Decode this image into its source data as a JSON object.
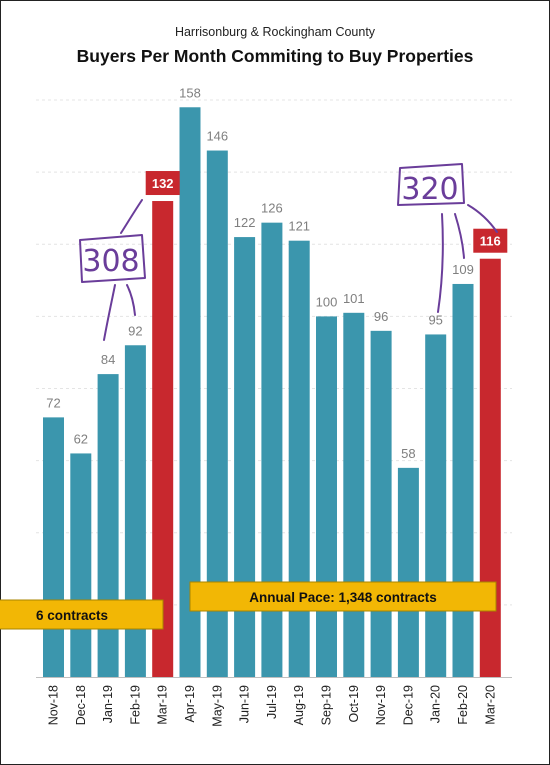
{
  "chart_data": {
    "type": "bar",
    "subtitle": "Harrisonburg & Rockingham County",
    "title": "Buyers Per Month Commiting to Buy Properties",
    "categories": [
      "Nov-18",
      "Dec-18",
      "Jan-19",
      "Feb-19",
      "Mar-19",
      "Apr-19",
      "May-19",
      "Jun-19",
      "Jul-19",
      "Aug-19",
      "Sep-19",
      "Oct-19",
      "Nov-19",
      "Dec-19",
      "Jan-20",
      "Feb-20",
      "Mar-20"
    ],
    "values": [
      72,
      62,
      84,
      92,
      132,
      158,
      146,
      122,
      126,
      121,
      100,
      101,
      96,
      58,
      95,
      109,
      116
    ],
    "highlighted": [
      "Mar-19",
      "Mar-20"
    ],
    "ylim": [
      0,
      170
    ],
    "grid": true,
    "colors": {
      "bar": "#3b96ad",
      "highlight": "#c8282e",
      "callout": "#f2b705",
      "handwriting": "#6a3d9a"
    },
    "annotations": {
      "callout_left": "6 contracts",
      "callout_right": "Annual Pace: 1,348 contracts",
      "handwritten_left": "308",
      "handwritten_right": "320"
    }
  }
}
